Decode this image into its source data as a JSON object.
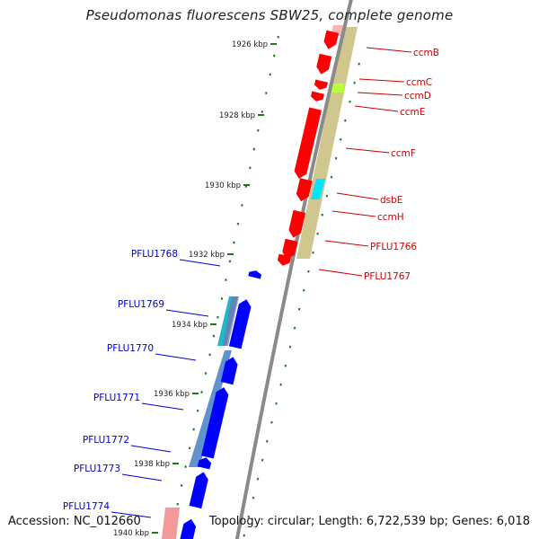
{
  "title": "Pseudomonas fluorescens SBW25, complete genome",
  "footer": {
    "accession": "Accession: NC_012660",
    "topology": "Topology: circular; Length: 6,722,539 bp; Genes: 6,018"
  },
  "ticks": [
    "1926 kbp",
    "1928 kbp",
    "1930 kbp",
    "1932 kbp",
    "1934 kbp",
    "1936 kbp",
    "1938 kbp",
    "1940 kbp"
  ],
  "colors": {
    "forward_gene": "#ff0000",
    "reverse_gene": "#0000ff",
    "forward_label": "#cc0000",
    "reverse_label": "#0000cc",
    "backbone": "#8a8a8a",
    "tick": "#1a7a1a",
    "cds_band": "#c8bd7a",
    "accent_cyan": "#00e5ff",
    "accent_lime": "#b6ff3a"
  },
  "forward_genes": [
    {
      "name": "ccmB"
    },
    {
      "name": "ccmC"
    },
    {
      "name": "ccmD"
    },
    {
      "name": "ccmE"
    },
    {
      "name": "ccmF"
    },
    {
      "name": "dsbE"
    },
    {
      "name": "ccmH"
    },
    {
      "name": "PFLU1766"
    },
    {
      "name": "PFLU1767"
    }
  ],
  "reverse_genes": [
    {
      "name": "PFLU1768"
    },
    {
      "name": "PFLU1769"
    },
    {
      "name": "PFLU1770"
    },
    {
      "name": "PFLU1771"
    },
    {
      "name": "PFLU1772"
    },
    {
      "name": "PFLU1773"
    },
    {
      "name": "PFLU1774"
    }
  ]
}
